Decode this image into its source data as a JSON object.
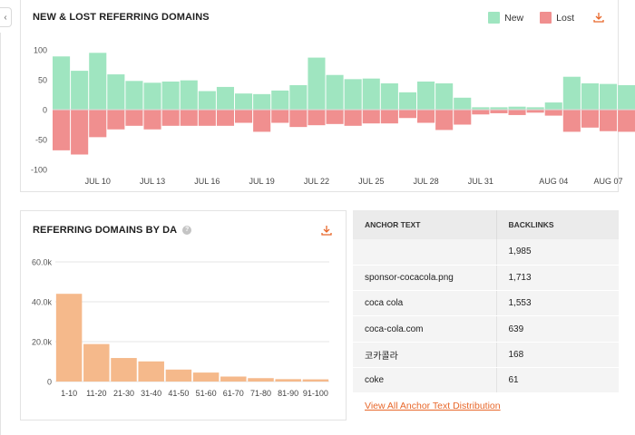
{
  "chart_data": [
    {
      "type": "bar",
      "title": "NEW & LOST REFERRING DOMAINS",
      "legend_placement": "top-right",
      "series": [
        {
          "name": "New",
          "color": "#9fe5c0",
          "values": [
            89,
            65,
            95,
            59,
            48,
            45,
            47,
            49,
            31,
            38,
            27,
            26,
            32,
            41,
            87,
            58,
            51,
            52,
            44,
            29,
            47,
            44,
            20,
            4,
            4,
            5,
            4,
            12,
            55,
            44,
            43,
            41
          ]
        },
        {
          "name": "Lost",
          "color": "#f08f8f",
          "values": [
            -68,
            -75,
            -46,
            -33,
            -27,
            -33,
            -27,
            -27,
            -27,
            -27,
            -22,
            -37,
            -22,
            -29,
            -26,
            -24,
            -27,
            -23,
            -23,
            -14,
            -22,
            -34,
            -25,
            -8,
            -6,
            -9,
            -5,
            -10,
            -37,
            -30,
            -36,
            -37
          ]
        }
      ],
      "x_tick_labels": [
        "JUL 10",
        "JUL 13",
        "JUL 16",
        "JUL 19",
        "JUL 22",
        "JUL 25",
        "JUL 28",
        "JUL 31",
        "AUG 04",
        "AUG 07"
      ],
      "x_tick_indices": [
        2,
        5,
        8,
        11,
        14,
        17,
        20,
        23,
        27,
        30
      ],
      "y_ticks": [
        100,
        50,
        0,
        -50,
        -100
      ],
      "ylim": [
        -100,
        100
      ],
      "grid": false
    },
    {
      "type": "bar",
      "title": "REFERRING DOMAINS BY DA",
      "color": "#f5b98b",
      "categories": [
        "1-10",
        "11-20",
        "21-30",
        "31-40",
        "41-50",
        "51-60",
        "61-70",
        "71-80",
        "81-90",
        "91-100"
      ],
      "values": [
        44000,
        18800,
        11800,
        10100,
        6000,
        4500,
        2500,
        1700,
        1200,
        1100
      ],
      "y_ticks": [
        "60.0k",
        "40.0k",
        "20.0k",
        "0"
      ],
      "ylim": [
        0,
        60000
      ],
      "grid": true
    }
  ],
  "top_panel": {
    "title": "NEW & LOST REFERRING DOMAINS",
    "legend_new": "New",
    "legend_lost": "Lost"
  },
  "da_panel": {
    "title": "REFERRING DOMAINS BY DA",
    "info_glyph": "?"
  },
  "anchor_table": {
    "headers": {
      "anchor": "ANCHOR TEXT",
      "backlinks": "BACKLINKS"
    },
    "rows": [
      {
        "anchor": "",
        "backlinks": "1,985"
      },
      {
        "anchor": "sponsor-cocacola.png",
        "backlinks": "1,713"
      },
      {
        "anchor": "coca cola",
        "backlinks": "1,553"
      },
      {
        "anchor": "coca-cola.com",
        "backlinks": "639"
      },
      {
        "anchor": "코카콜라",
        "backlinks": "168"
      },
      {
        "anchor": "coke",
        "backlinks": "61"
      }
    ],
    "link": "View All Anchor Text Distribution"
  },
  "icons": {
    "collapse": "chevron-left-icon",
    "download": "download-icon",
    "info": "info-icon"
  },
  "colors": {
    "accent": "#e8672a",
    "new": "#9fe5c0",
    "lost": "#f08f8f",
    "da": "#f5b98b"
  }
}
